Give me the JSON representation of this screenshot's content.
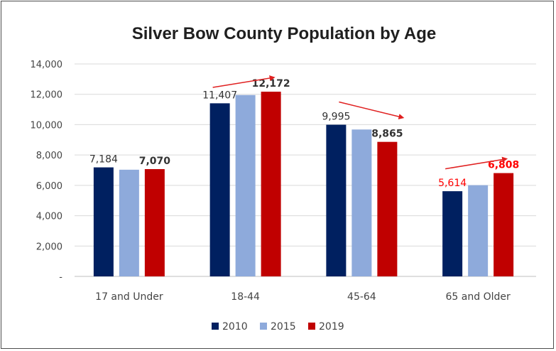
{
  "chart_data": {
    "type": "bar",
    "title": "Silver Bow County Population by Age",
    "xlabel": "",
    "ylabel": "",
    "ylim": [
      0,
      14000
    ],
    "y_ticks": [
      "-",
      "2,000",
      "4,000",
      "6,000",
      "8,000",
      "10,000",
      "12,000",
      "14,000"
    ],
    "y_tick_values": [
      0,
      2000,
      4000,
      6000,
      8000,
      10000,
      12000,
      14000
    ],
    "grid": true,
    "legend_position": "bottom",
    "categories": [
      "17 and Under",
      "18-44",
      "45-64",
      "65 and Older"
    ],
    "series": [
      {
        "name": "2010",
        "color": "#002060",
        "values": [
          7184,
          11407,
          9995,
          5614
        ]
      },
      {
        "name": "2015",
        "color": "#8eaadb",
        "values": [
          7030,
          11950,
          9680,
          6010
        ]
      },
      {
        "name": "2019",
        "color": "#c00000",
        "values": [
          7070,
          12172,
          8865,
          6808
        ]
      }
    ],
    "data_labels": [
      {
        "category": 0,
        "series": 0,
        "text": "7,184",
        "color": "#333333",
        "bold": false
      },
      {
        "category": 0,
        "series": 2,
        "text": "7,070",
        "color": "#333333",
        "bold": true
      },
      {
        "category": 1,
        "series": 0,
        "text": "11,407",
        "color": "#333333",
        "bold": false
      },
      {
        "category": 1,
        "series": 2,
        "text": "12,172",
        "color": "#333333",
        "bold": true
      },
      {
        "category": 2,
        "series": 0,
        "text": "9,995",
        "color": "#333333",
        "bold": false
      },
      {
        "category": 2,
        "series": 2,
        "text": "8,865",
        "color": "#333333",
        "bold": true
      },
      {
        "category": 3,
        "series": 0,
        "text": "5,614",
        "color": "#ff0000",
        "bold": false
      },
      {
        "category": 3,
        "series": 2,
        "text": "6,808",
        "color": "#ff0000",
        "bold": true
      }
    ],
    "annotations": [
      {
        "type": "arrow",
        "category": 1,
        "direction": "up",
        "color": "#e02020"
      },
      {
        "type": "arrow",
        "category": 2,
        "direction": "down",
        "color": "#e02020"
      },
      {
        "type": "arrow",
        "category": 3,
        "direction": "up",
        "color": "#e02020"
      }
    ]
  }
}
